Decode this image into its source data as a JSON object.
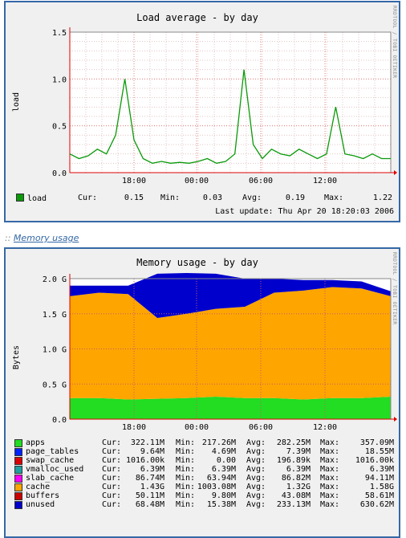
{
  "load_graph": {
    "title": "Load average - by day",
    "side_label": "RRDTOOL / TOBI OETIKER",
    "ylabel": "load",
    "legend": {
      "name": "load",
      "cur": "0.15",
      "min": "0.03",
      "avg": "0.19",
      "max": "1.22",
      "color": "#0a9a0a"
    },
    "labels": {
      "cur": "Cur:",
      "min": "Min:",
      "avg": "Avg:",
      "max": "Max:"
    },
    "last_update": "Last update: Thu Apr 20 18:20:03 2006"
  },
  "memory_link": {
    "separator": "::",
    "text": "Memory usage"
  },
  "memory_graph": {
    "title": "Memory usage - by day",
    "side_label": "RRDTOOL / TOBI OETIKER",
    "ylabel": "Bytes",
    "legend": [
      {
        "name": "apps",
        "cur": "322.11M",
        "min": "217.26M",
        "avg": "282.25M",
        "max": "357.09M",
        "color": "#22dd22"
      },
      {
        "name": "page_tables",
        "cur": "9.64M",
        "min": "4.69M",
        "avg": "7.39M",
        "max": "18.55M",
        "color": "#0022ff"
      },
      {
        "name": "swap_cache",
        "cur": "1016.00k",
        "min": "0.00",
        "avg": "196.89k",
        "max": "1016.00k",
        "color": "#dd0000"
      },
      {
        "name": "vmalloc_used",
        "cur": "6.39M",
        "min": "6.39M",
        "avg": "6.39M",
        "max": "6.39M",
        "color": "#20a0a0"
      },
      {
        "name": "slab_cache",
        "cur": "86.74M",
        "min": "63.94M",
        "avg": "86.82M",
        "max": "94.11M",
        "color": "#ff00ff"
      },
      {
        "name": "cache",
        "cur": "1.43G",
        "min": "1003.08M",
        "avg": "1.32G",
        "max": "1.58G",
        "color": "#ffa500"
      },
      {
        "name": "buffers",
        "cur": "50.11M",
        "min": "9.80M",
        "avg": "43.08M",
        "max": "58.61M",
        "color": "#cc0000"
      },
      {
        "name": "unused",
        "cur": "68.48M",
        "min": "15.38M",
        "avg": "233.13M",
        "max": "630.62M",
        "color": "#0000cc"
      }
    ]
  },
  "chart_data": [
    {
      "type": "line",
      "title": "Load average - by day",
      "ylabel": "load",
      "x_ticks": [
        "18:00",
        "00:00",
        "06:00",
        "12:00"
      ],
      "y_ticks": [
        "0.0",
        "0.5",
        "1.0",
        "1.5"
      ],
      "ylim": [
        0,
        1.5
      ],
      "grid": true,
      "series": [
        {
          "name": "load",
          "values": [
            0.2,
            0.15,
            0.18,
            0.25,
            0.2,
            0.4,
            1.0,
            0.35,
            0.15,
            0.1,
            0.12,
            0.1,
            0.11,
            0.1,
            0.12,
            0.15,
            0.1,
            0.12,
            0.2,
            1.1,
            0.3,
            0.15,
            0.25,
            0.2,
            0.18,
            0.25,
            0.2,
            0.15,
            0.2,
            0.7,
            0.2,
            0.18,
            0.15,
            0.2,
            0.15,
            0.15
          ]
        }
      ]
    },
    {
      "type": "area",
      "title": "Memory usage - by day",
      "ylabel": "Bytes",
      "x_ticks": [
        "18:00",
        "00:00",
        "06:00",
        "12:00"
      ],
      "y_ticks": [
        "0.0",
        "0.5 G",
        "1.0 G",
        "1.5 G",
        "2.0 G"
      ],
      "ylim": [
        0,
        2.0
      ],
      "grid": true,
      "series": [
        {
          "name": "apps",
          "values": [
            0.3,
            0.3,
            0.28,
            0.29,
            0.3,
            0.32,
            0.3,
            0.3,
            0.28,
            0.3,
            0.3,
            0.32
          ]
        },
        {
          "name": "cache",
          "values": [
            1.45,
            1.5,
            1.5,
            1.15,
            1.2,
            1.25,
            1.3,
            1.5,
            1.55,
            1.58,
            1.56,
            1.43
          ]
        },
        {
          "name": "unused",
          "values": [
            0.15,
            0.1,
            0.12,
            0.63,
            0.58,
            0.5,
            0.4,
            0.2,
            0.15,
            0.1,
            0.1,
            0.07
          ]
        }
      ]
    }
  ]
}
